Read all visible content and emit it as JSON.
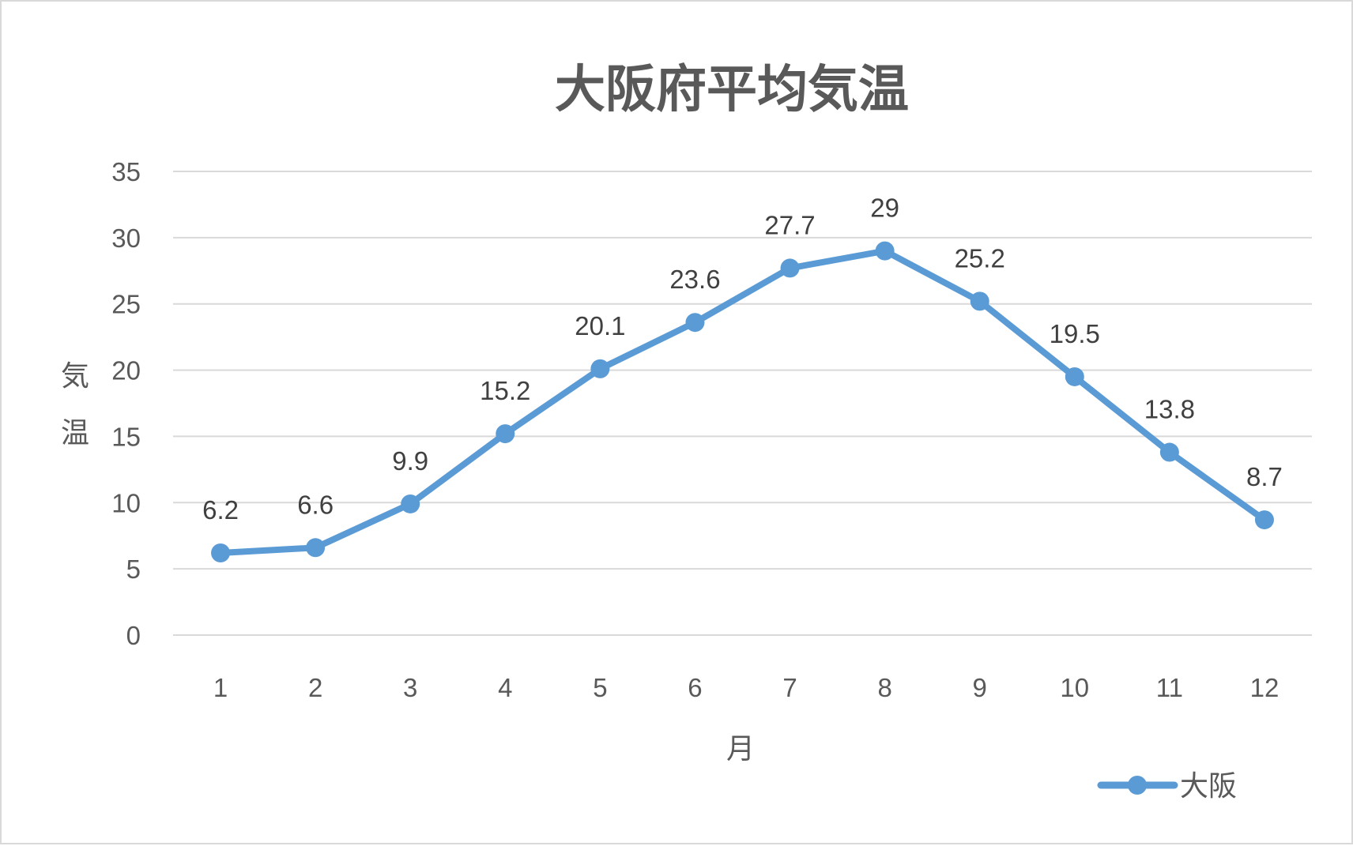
{
  "chart_data": {
    "type": "line",
    "title": "大阪府平均気温",
    "xlabel": "月",
    "ylabel": "気温",
    "categories": [
      "1",
      "2",
      "3",
      "4",
      "5",
      "6",
      "7",
      "8",
      "9",
      "10",
      "11",
      "12"
    ],
    "series": [
      {
        "name": "大阪",
        "values": [
          6.2,
          6.6,
          9.9,
          15.2,
          20.1,
          23.6,
          27.7,
          29,
          25.2,
          19.5,
          13.8,
          8.7
        ],
        "labels": [
          "6.2",
          "6.6",
          "9.9",
          "15.2",
          "20.1",
          "23.6",
          "27.7",
          "29",
          "25.2",
          "19.5",
          "13.8",
          "8.7"
        ],
        "color": "#5b9bd5"
      }
    ],
    "ylim": [
      0,
      35
    ],
    "yticks": [
      "0",
      "5",
      "10",
      "15",
      "20",
      "25",
      "30",
      "35"
    ],
    "grid": true,
    "data_labels": true,
    "legend": "bottom-right"
  },
  "colors": {
    "series": "#5b9bd5",
    "grid": "#d9d9d9",
    "text": "#595959",
    "border": "#d9d9d9"
  }
}
